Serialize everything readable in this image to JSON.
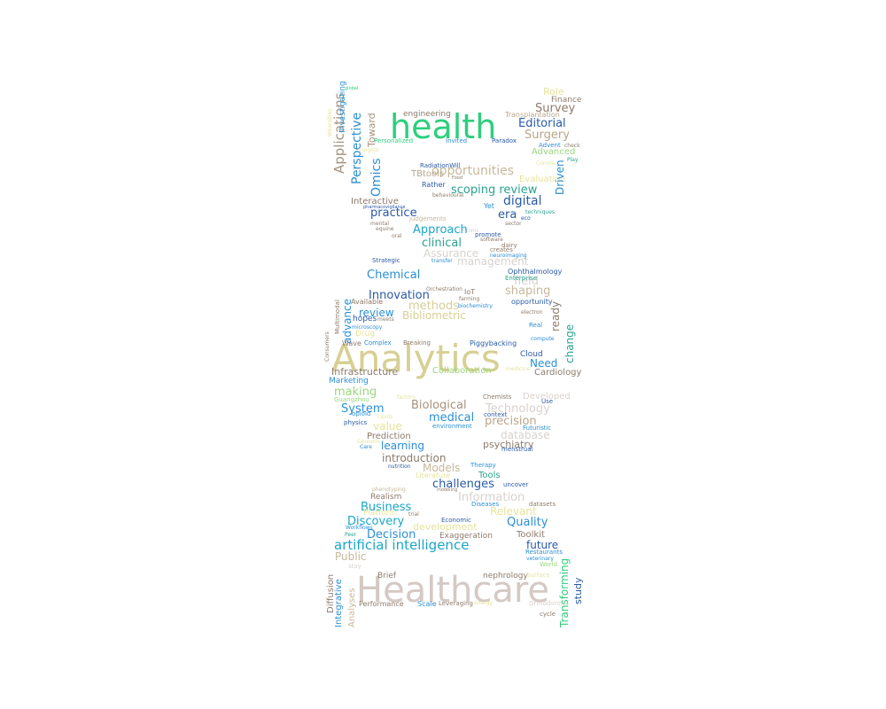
{
  "words": [
    {
      "text": "Healthcare",
      "color": "#d4c9c4"
    },
    {
      "text": "Analytics",
      "color": "#d8cf94"
    },
    {
      "text": "health",
      "color": "#2ecf7d"
    },
    {
      "text": "artificial intelligence",
      "color": "#1aa6c9"
    },
    {
      "text": "Applications",
      "color": "#a8927e"
    },
    {
      "text": "Perspective",
      "color": "#2a8fd6"
    },
    {
      "text": "Omics",
      "color": "#2a8fd6"
    },
    {
      "text": "Toward",
      "color": "#a8927e"
    },
    {
      "text": "Investigating",
      "color": "#2a8fd6"
    },
    {
      "text": "Role",
      "color": "#e6e49a"
    },
    {
      "text": "Finance",
      "color": "#8d7b6c"
    },
    {
      "text": "Survey",
      "color": "#8d7b6c"
    },
    {
      "text": "Editorial",
      "color": "#2a5aa6"
    },
    {
      "text": "Surgery",
      "color": "#b9a58a"
    },
    {
      "text": "engineering",
      "color": "#8d7b6c"
    },
    {
      "text": "Transplantation",
      "color": "#b9a58a"
    },
    {
      "text": "Personalized",
      "color": "#2ecf7d"
    },
    {
      "text": "Invited",
      "color": "#2a8fd6"
    },
    {
      "text": "Paradox",
      "color": "#2a5aa6"
    },
    {
      "text": "Advent",
      "color": "#2a8fd6"
    },
    {
      "text": "Advanced",
      "color": "#9ad87e"
    },
    {
      "text": "opportunities",
      "color": "#c7b89a"
    },
    {
      "text": "TBtools",
      "color": "#b9a58a"
    },
    {
      "text": "Evaluation",
      "color": "#e6e49a"
    },
    {
      "text": "Driven",
      "color": "#2a8fd6"
    },
    {
      "text": "scoping review",
      "color": "#2aa38e"
    },
    {
      "text": "Rather",
      "color": "#2a5aa6"
    },
    {
      "text": "digital",
      "color": "#2a5aa6"
    },
    {
      "text": "Interactive",
      "color": "#8d7b6c"
    },
    {
      "text": "practice",
      "color": "#2a5aa6"
    },
    {
      "text": "era",
      "color": "#2a5aa6"
    },
    {
      "text": "Yet",
      "color": "#2a8fd6"
    },
    {
      "text": "Approach",
      "color": "#1aa6c9"
    },
    {
      "text": "clinical",
      "color": "#2aa38e"
    },
    {
      "text": "Assurance",
      "color": "#d8d2ce"
    },
    {
      "text": "management",
      "color": "#d8d2ce"
    },
    {
      "text": "Chemical",
      "color": "#2a8fd6"
    },
    {
      "text": "field",
      "color": "#d8d2ce"
    },
    {
      "text": "Ophthalmology",
      "color": "#2a5aa6"
    },
    {
      "text": "Innovation",
      "color": "#2a5aa6"
    },
    {
      "text": "shaping",
      "color": "#c7b89a"
    },
    {
      "text": "methods",
      "color": "#d8cf94"
    },
    {
      "text": "review",
      "color": "#2a8fd6"
    },
    {
      "text": "Bibliometric",
      "color": "#d8cf94"
    },
    {
      "text": "ready",
      "color": "#8d7b6c"
    },
    {
      "text": "change",
      "color": "#2aa38e"
    },
    {
      "text": "advance",
      "color": "#2a8fd6"
    },
    {
      "text": "Need",
      "color": "#2a8fd6"
    },
    {
      "text": "Cloud",
      "color": "#2a5aa6"
    },
    {
      "text": "Infrastructure",
      "color": "#8d7b6c"
    },
    {
      "text": "Collaboration",
      "color": "#9ad87e"
    },
    {
      "text": "Cardiology",
      "color": "#8d7b6c"
    },
    {
      "text": "Marketing",
      "color": "#2a8fd6"
    },
    {
      "text": "making",
      "color": "#9ad87e"
    },
    {
      "text": "System",
      "color": "#2a8fd6"
    },
    {
      "text": "Biological",
      "color": "#a8927e"
    },
    {
      "text": "Technology",
      "color": "#d8d2ce"
    },
    {
      "text": "medical",
      "color": "#2a8fd6"
    },
    {
      "text": "precision",
      "color": "#b9a58a"
    },
    {
      "text": "value",
      "color": "#e6e49a"
    },
    {
      "text": "database",
      "color": "#d8d2ce"
    },
    {
      "text": "Prediction",
      "color": "#8d7b6c"
    },
    {
      "text": "learning",
      "color": "#2a8fd6"
    },
    {
      "text": "psychiatry",
      "color": "#8d7b6c"
    },
    {
      "text": "introduction",
      "color": "#8d7b6c"
    },
    {
      "text": "Models",
      "color": "#c7b89a"
    },
    {
      "text": "Tools",
      "color": "#2aa38e"
    },
    {
      "text": "challenges",
      "color": "#2a5aa6"
    },
    {
      "text": "Information",
      "color": "#d8d2ce"
    },
    {
      "text": "Business",
      "color": "#1aa6c9"
    },
    {
      "text": "Relevant",
      "color": "#e6e49a"
    },
    {
      "text": "Discovery",
      "color": "#1aa6c9"
    },
    {
      "text": "development",
      "color": "#e6e49a"
    },
    {
      "text": "Quality",
      "color": "#2a8fd6"
    },
    {
      "text": "Decision",
      "color": "#2a8fd6"
    },
    {
      "text": "Exaggeration",
      "color": "#8d7b6c"
    },
    {
      "text": "Toolkit",
      "color": "#8d7b6c"
    },
    {
      "text": "future",
      "color": "#2a5aa6"
    },
    {
      "text": "Public",
      "color": "#c7b89a"
    },
    {
      "text": "nephrology",
      "color": "#8d7b6c"
    },
    {
      "text": "Brief",
      "color": "#8d7b6c"
    },
    {
      "text": "Transforming",
      "color": "#2ecf7d"
    },
    {
      "text": "study",
      "color": "#2a5aa6"
    },
    {
      "text": "Diffusion",
      "color": "#8d7b6c"
    },
    {
      "text": "Integrative",
      "color": "#2a8fd6"
    },
    {
      "text": "Analyses",
      "color": "#c7b89a"
    },
    {
      "text": "Scale",
      "color": "#2a8fd6"
    },
    {
      "text": "Performance",
      "color": "#8d7b6c"
    },
    {
      "text": "Leveraging",
      "color": "#8d7b6c"
    },
    {
      "text": "Realism",
      "color": "#8d7b6c"
    },
    {
      "text": "Platform",
      "color": "#e6e49a"
    },
    {
      "text": "Economic",
      "color": "#2a5aa6"
    },
    {
      "text": "Literature",
      "color": "#e6e49a"
    },
    {
      "text": "Therapy",
      "color": "#2a8fd6"
    },
    {
      "text": "uncover",
      "color": "#2a5aa6"
    },
    {
      "text": "Diseases",
      "color": "#2a8fd6"
    },
    {
      "text": "datasets",
      "color": "#8d7b6c"
    },
    {
      "text": "Piggybacking",
      "color": "#2a5aa6"
    },
    {
      "text": "Complex",
      "color": "#2a8fd6"
    },
    {
      "text": "Breaking",
      "color": "#8d7b6c"
    },
    {
      "text": "Wave",
      "color": "#8d7b6c"
    },
    {
      "text": "Drug",
      "color": "#e6e49a"
    },
    {
      "text": "hopes",
      "color": "#2a5aa6"
    },
    {
      "text": "Available",
      "color": "#8d7b6c"
    },
    {
      "text": "IoT",
      "color": "#8d7b6c"
    },
    {
      "text": "opportunity",
      "color": "#2a5aa6"
    },
    {
      "text": "Strategic",
      "color": "#2a5aa6"
    },
    {
      "text": "Enterprise",
      "color": "#2aa38e"
    },
    {
      "text": "RadiationWill",
      "color": "#2a5aa6"
    },
    {
      "text": "behavioural",
      "color": "#8d7b6c"
    },
    {
      "text": "judgements",
      "color": "#c7b89a"
    },
    {
      "text": "Chemists",
      "color": "#8d7b6c"
    },
    {
      "text": "Developed",
      "color": "#d8d2ce"
    },
    {
      "text": "Use",
      "color": "#2a5aa6"
    },
    {
      "text": "Real",
      "color": "#2a8fd6"
    },
    {
      "text": "Futuristic",
      "color": "#2a8fd6"
    },
    {
      "text": "menstrual",
      "color": "#2a5aa6"
    },
    {
      "text": "environment",
      "color": "#2a8fd6"
    },
    {
      "text": "nutrition",
      "color": "#2a5aa6"
    },
    {
      "text": "physics",
      "color": "#2a5aa6"
    },
    {
      "text": "opioid",
      "color": "#2a8fd6"
    },
    {
      "text": "Guangzhou",
      "color": "#9ad87e"
    },
    {
      "text": "context",
      "color": "#2a5aa6"
    },
    {
      "text": "Orthodontics",
      "color": "#d8d2ce"
    },
    {
      "text": "Surface",
      "color": "#e6e49a"
    },
    {
      "text": "World",
      "color": "#9ad87e"
    },
    {
      "text": "stay",
      "color": "#d8d2ce"
    },
    {
      "text": "cycle",
      "color": "#8d7b6c"
    },
    {
      "text": "Restaurants",
      "color": "#2a8fd6"
    },
    {
      "text": "farming",
      "color": "#8d7b6c"
    },
    {
      "text": "biochemistry",
      "color": "#2a8fd6"
    },
    {
      "text": "Orchestration",
      "color": "#8d7b6c"
    },
    {
      "text": "microscopy",
      "color": "#2a8fd6"
    },
    {
      "text": "compute",
      "color": "#2a8fd6"
    },
    {
      "text": "electron",
      "color": "#8d7b6c"
    },
    {
      "text": "medicine",
      "color": "#e6e49a"
    },
    {
      "text": "Multimodal",
      "color": "#8d7b6c"
    },
    {
      "text": "Consumers",
      "color": "#8d7b6c"
    },
    {
      "text": "promote",
      "color": "#2a5aa6"
    },
    {
      "text": "software",
      "color": "#8d7b6c"
    },
    {
      "text": "dairy",
      "color": "#8d7b6c"
    },
    {
      "text": "creates",
      "color": "#8d7b6c"
    },
    {
      "text": "neuroimaging",
      "color": "#2a8fd6"
    },
    {
      "text": "transfer",
      "color": "#2a8fd6"
    },
    {
      "text": "Chronic",
      "color": "#d8d2ce"
    },
    {
      "text": "mental",
      "color": "#8d7b6c"
    },
    {
      "text": "equine",
      "color": "#8d7b6c"
    },
    {
      "text": "oral",
      "color": "#8d7b6c"
    },
    {
      "text": "sector",
      "color": "#8d7b6c"
    },
    {
      "text": "techniques",
      "color": "#2aa38e"
    },
    {
      "text": "eco",
      "color": "#2a5aa6"
    },
    {
      "text": "check",
      "color": "#8d7b6c"
    },
    {
      "text": "Play",
      "color": "#2aa38e"
    },
    {
      "text": "Corona",
      "color": "#e6e49a"
    },
    {
      "text": "global",
      "color": "#2ecf7d"
    },
    {
      "text": "Wearables",
      "color": "#e6e49a"
    },
    {
      "text": "phenotyping",
      "color": "#c7b89a"
    },
    {
      "text": "modeling",
      "color": "#8d7b6c"
    },
    {
      "text": "factors",
      "color": "#e6e49a"
    },
    {
      "text": "Workflows",
      "color": "#2a8fd6"
    },
    {
      "text": "Peer",
      "color": "#2aa38e"
    },
    {
      "text": "trial",
      "color": "#8d7b6c"
    },
    {
      "text": "veterinary",
      "color": "#2a8fd6"
    },
    {
      "text": "energy",
      "color": "#e6e49a"
    },
    {
      "text": "Care",
      "color": "#2a8fd6"
    },
    {
      "text": "Lipids",
      "color": "#e6e49a"
    },
    {
      "text": "Genomic",
      "color": "#e6e49a"
    },
    {
      "text": "meets",
      "color": "#8d7b6c"
    },
    {
      "text": "pharmacovigilance",
      "color": "#2a5aa6"
    },
    {
      "text": "Insights",
      "color": "#e6e49a"
    },
    {
      "text": "Food",
      "color": "#8d7b6c"
    }
  ]
}
